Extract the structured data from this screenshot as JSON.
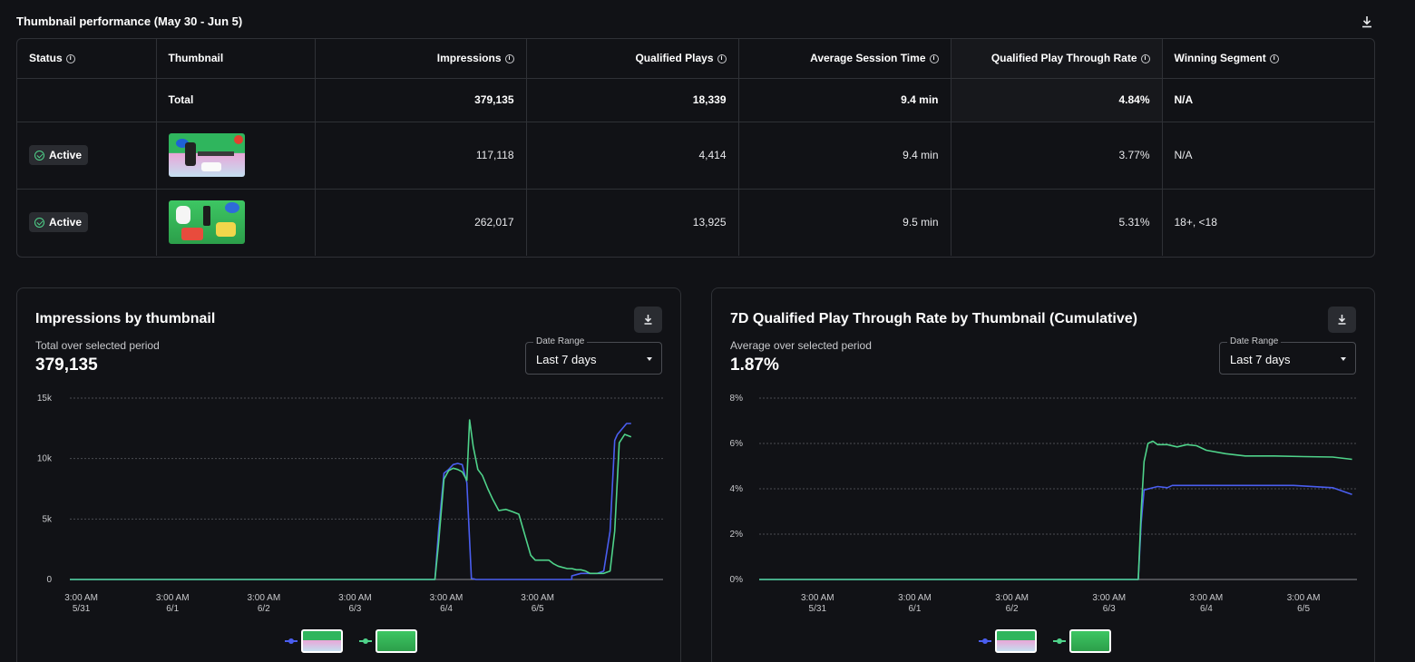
{
  "section": {
    "title": "Thumbnail performance (May 30 - Jun 5)"
  },
  "table": {
    "headers": {
      "status": "Status",
      "thumbnail": "Thumbnail",
      "impressions": "Impressions",
      "qualified_plays": "Qualified Plays",
      "avg_session": "Average Session Time",
      "qptr": "Qualified Play Through Rate",
      "winning": "Winning Segment"
    },
    "total": {
      "label": "Total",
      "impressions": "379,135",
      "qualified_plays": "18,339",
      "avg_session": "9.4 min",
      "qptr": "4.84%",
      "winning": "N/A"
    },
    "rows": [
      {
        "status": "Active",
        "impressions": "117,118",
        "qualified_plays": "4,414",
        "avg_session": "9.4 min",
        "qptr": "3.77%",
        "winning": "N/A"
      },
      {
        "status": "Active",
        "impressions": "262,017",
        "qualified_plays": "13,925",
        "avg_session": "9.5 min",
        "qptr": "5.31%",
        "winning": "18+, <18"
      }
    ]
  },
  "colors": {
    "series_a": "#4a5ef0",
    "series_b": "#4fd38a",
    "grid": "#4a4c52"
  },
  "icons": {
    "download": "download-icon",
    "info": "info-icon",
    "check": "check-circle-icon",
    "caret": "caret-down-icon"
  },
  "cards": {
    "impressions": {
      "title": "Impressions by thumbnail",
      "sub": "Total over selected period",
      "value": "379,135",
      "date_label": "Date Range",
      "date_value": "Last 7 days"
    },
    "qptr": {
      "title": "7D Qualified Play Through Rate by Thumbnail (Cumulative)",
      "sub": "Average over selected period",
      "value": "1.87%",
      "date_label": "Date Range",
      "date_value": "Last 7 days"
    }
  },
  "chart_data": [
    {
      "type": "line",
      "ylim": [
        0,
        15000
      ],
      "y_ticks": [
        0,
        5000,
        10000,
        15000
      ],
      "y_tick_labels": [
        "0",
        "5k",
        "10k",
        "15k"
      ],
      "xlim": [
        0,
        6.5
      ],
      "x_ticks": [
        0.125,
        1.125,
        2.125,
        3.125,
        4.125,
        5.125
      ],
      "x_tick_labels": [
        [
          "3:00 AM",
          "5/31"
        ],
        [
          "3:00 AM",
          "6/1"
        ],
        [
          "3:00 AM",
          "6/2"
        ],
        [
          "3:00 AM",
          "6/3"
        ],
        [
          "3:00 AM",
          "6/4"
        ],
        [
          "3:00 AM",
          "6/5"
        ]
      ],
      "grid": true,
      "legend": "bottom-center",
      "series": [
        {
          "x": [
            0,
            3.9,
            4.0,
            4.04,
            4.1,
            4.15,
            4.2,
            4.25,
            4.3,
            4.35,
            4.4,
            4.45,
            5.5,
            5.5,
            5.6,
            5.7,
            5.78,
            5.85,
            5.92,
            5.97,
            6.0,
            6.1,
            6.15
          ],
          "y": [
            0,
            0,
            0,
            4000,
            8800,
            9100,
            9500,
            9600,
            9500,
            8000,
            100,
            0,
            0,
            300,
            500,
            500,
            500,
            700,
            4000,
            11500,
            12000,
            12900,
            12900
          ]
        },
        {
          "x": [
            0,
            3.9,
            4.0,
            4.04,
            4.1,
            4.15,
            4.2,
            4.25,
            4.3,
            4.35,
            4.38,
            4.42,
            4.47,
            4.52,
            4.58,
            4.63,
            4.7,
            4.78,
            4.85,
            4.92,
            5.0,
            5.05,
            5.1,
            5.15,
            5.25,
            5.3,
            5.35,
            5.4,
            5.45,
            5.5,
            5.55,
            5.6,
            5.65,
            5.7,
            5.78,
            5.85,
            5.92,
            5.97,
            6.02,
            6.08,
            6.15
          ],
          "y": [
            0,
            0,
            0,
            3000,
            8300,
            9000,
            9200,
            9100,
            8900,
            8200,
            13200,
            11000,
            9100,
            8600,
            7500,
            6700,
            5700,
            5800,
            5600,
            5400,
            3300,
            2000,
            1600,
            1600,
            1600,
            1300,
            1100,
            1000,
            900,
            900,
            800,
            800,
            700,
            500,
            500,
            500,
            700,
            4000,
            11300,
            12000,
            11800
          ]
        }
      ]
    },
    {
      "type": "line",
      "ylim": [
        0,
        8
      ],
      "y_ticks": [
        0,
        2,
        4,
        6,
        8
      ],
      "y_tick_labels": [
        "0%",
        "2%",
        "4%",
        "6%",
        "8%"
      ],
      "xlim": [
        0,
        6.15
      ],
      "x_ticks": [
        0.6,
        1.6,
        2.6,
        3.6,
        4.6,
        5.6
      ],
      "x_tick_labels": [
        [
          "3:00 AM",
          "5/31"
        ],
        [
          "3:00 AM",
          "6/1"
        ],
        [
          "3:00 AM",
          "6/2"
        ],
        [
          "3:00 AM",
          "6/3"
        ],
        [
          "3:00 AM",
          "6/4"
        ],
        [
          "3:00 AM",
          "6/5"
        ]
      ],
      "grid": true,
      "legend": "bottom-center",
      "series": [
        {
          "x": [
            0,
            3.9,
            3.93,
            3.96,
            4.1,
            4.2,
            4.25,
            4.3,
            5.0,
            5.5,
            5.9,
            6.0,
            6.1
          ],
          "y": [
            0,
            0,
            2.5,
            3.95,
            4.1,
            4.05,
            4.15,
            4.15,
            4.15,
            4.15,
            4.05,
            3.9,
            3.75
          ]
        },
        {
          "x": [
            0,
            3.9,
            3.93,
            3.96,
            4.0,
            4.05,
            4.1,
            4.2,
            4.3,
            4.4,
            4.5,
            4.6,
            4.8,
            5.0,
            5.3,
            5.6,
            5.9,
            6.1
          ],
          "y": [
            0,
            0,
            3.0,
            5.2,
            6.0,
            6.1,
            5.95,
            5.95,
            5.85,
            5.95,
            5.9,
            5.7,
            5.55,
            5.45,
            5.45,
            5.42,
            5.4,
            5.3
          ]
        }
      ]
    }
  ]
}
